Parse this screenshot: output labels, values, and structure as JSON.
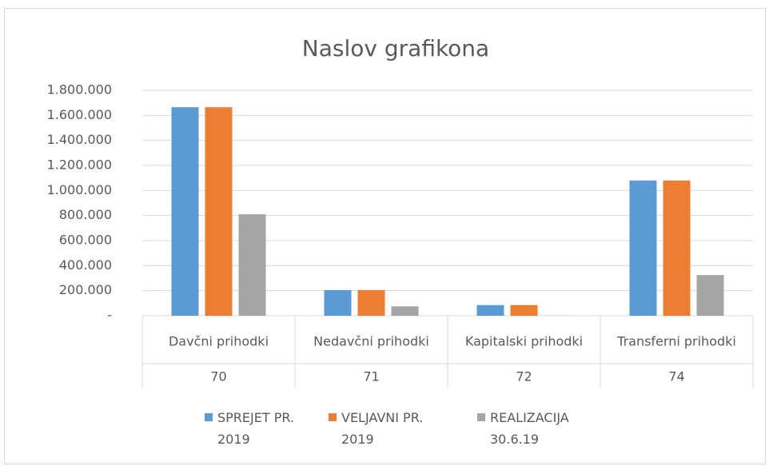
{
  "chart_data": {
    "type": "bar",
    "title": "Naslov grafikona",
    "categories": [
      "Davčni prihodki",
      "Nedavčni prihodki",
      "Kapitalski prihodki",
      "Transferni prihodki"
    ],
    "category_groups": [
      "70",
      "71",
      "72",
      "74"
    ],
    "series": [
      {
        "name": "SPREJET PR. 2019",
        "color": "#5b9bd5",
        "values": [
          1665000,
          205000,
          85000,
          1080000
        ]
      },
      {
        "name": "VELJAVNI PR. 2019",
        "color": "#ed7d31",
        "values": [
          1665000,
          205000,
          85000,
          1080000
        ]
      },
      {
        "name": "REALIZACIJA 30.6.19",
        "color": "#a5a5a5",
        "values": [
          810000,
          75000,
          1000,
          325000
        ]
      }
    ],
    "ylim": [
      0,
      1800000
    ],
    "yticks": [
      {
        "value": 0,
        "label": "-"
      },
      {
        "value": 200000,
        "label": "200.000"
      },
      {
        "value": 400000,
        "label": "400.000"
      },
      {
        "value": 600000,
        "label": "600.000"
      },
      {
        "value": 800000,
        "label": "800.000"
      },
      {
        "value": 1000000,
        "label": "1.000.000"
      },
      {
        "value": 1200000,
        "label": "1.200.000"
      },
      {
        "value": 1400000,
        "label": "1.400.000"
      },
      {
        "value": 1600000,
        "label": "1.600.000"
      },
      {
        "value": 1800000,
        "label": "1.800.000"
      }
    ],
    "grid": true,
    "legend": "bottom"
  }
}
